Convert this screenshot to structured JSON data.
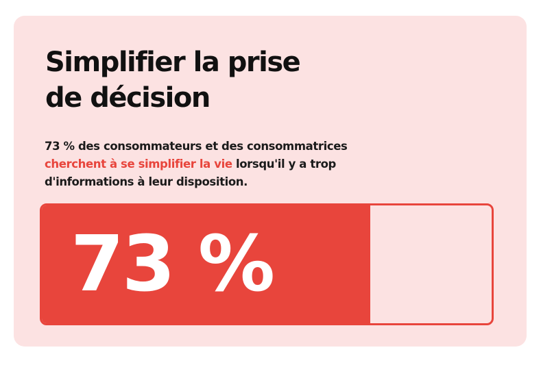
{
  "title": {
    "line1": "Simplifier la prise",
    "line2": "de décision"
  },
  "description": {
    "line1": "73 % des consommateurs et des consommatrices",
    "line2_highlight": "cherchent à se simplifier la vie",
    "line2_rest": " lorsqu'il y a trop",
    "line3": "d'informations à leur disposition."
  },
  "progress": {
    "label": "73 %",
    "percent": 73
  },
  "colors": {
    "background": "#fce2e2",
    "accent": "#e8453c",
    "text": "#111111"
  }
}
